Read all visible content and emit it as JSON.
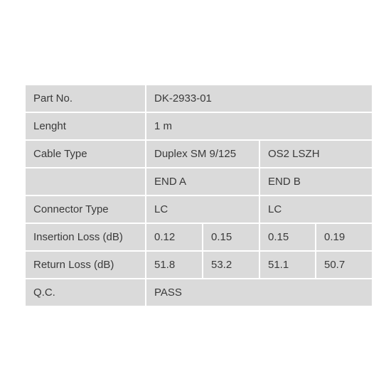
{
  "table": {
    "rows": [
      [
        "Part No.",
        "DK-2933-01"
      ],
      [
        "Lenght",
        "1 m"
      ],
      [
        "Cable Type",
        "Duplex SM 9/125",
        "OS2 LSZH"
      ],
      [
        "END A",
        "END B"
      ],
      [
        "Connector Type",
        "LC",
        "LC"
      ],
      [
        "Insertion Loss (dB)",
        0.12,
        0.15,
        0.15,
        0.19
      ],
      [
        "Return Loss (dB)",
        51.8,
        53.2,
        51.1,
        50.7
      ],
      [
        "Q.C.",
        "PASS"
      ]
    ]
  }
}
